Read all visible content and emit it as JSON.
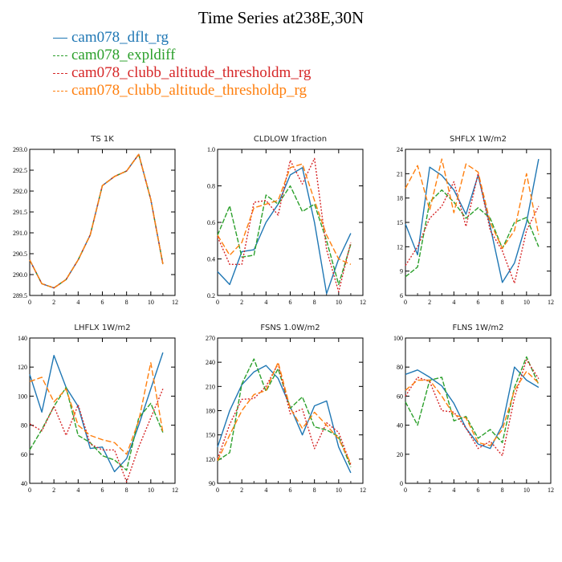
{
  "title": "Time Series at238E,30N",
  "legend": [
    {
      "name": "cam078_dflt_rg",
      "color": "#1f77b4",
      "dash": ""
    },
    {
      "name": "cam078_expldiff",
      "color": "#2ca02c",
      "dash": "6,2"
    },
    {
      "name": "cam078_clubb_altitude_thresholdm_rg",
      "color": "#d62728",
      "dash": "2,2"
    },
    {
      "name": "cam078_clubb_altitude_thresholdp_rg",
      "color": "#ff7f0e",
      "dash": "7,3"
    }
  ],
  "chart_data": [
    {
      "type": "line",
      "title": "TS   1K",
      "xlim": [
        0,
        12
      ],
      "xticks": [
        "0",
        "2",
        "4",
        "6",
        "8",
        "10",
        "12"
      ],
      "ylim": [
        289.5,
        293.0
      ],
      "yticks": [
        "289.5",
        "290.0",
        "290.5",
        "291.0",
        "291.5",
        "292.0",
        "292.5",
        "293.0"
      ],
      "x": [
        0,
        1,
        2,
        3,
        4,
        5,
        6,
        7,
        8,
        9,
        10,
        11
      ],
      "series": [
        {
          "name": "cam078_dflt_rg",
          "values": [
            290.35,
            289.78,
            289.68,
            289.88,
            290.35,
            290.95,
            292.13,
            292.35,
            292.48,
            292.88,
            291.8,
            290.25
          ]
        },
        {
          "name": "cam078_expldiff",
          "values": [
            290.35,
            289.78,
            289.68,
            289.88,
            290.35,
            290.95,
            292.13,
            292.35,
            292.48,
            292.88,
            291.8,
            290.25
          ]
        },
        {
          "name": "cam078_clubb_altitude_thresholdm_rg",
          "values": [
            290.35,
            289.78,
            289.68,
            289.88,
            290.35,
            290.95,
            292.13,
            292.35,
            292.48,
            292.88,
            291.8,
            290.25
          ]
        },
        {
          "name": "cam078_clubb_altitude_thresholdp_rg",
          "values": [
            290.35,
            289.78,
            289.68,
            289.88,
            290.35,
            290.95,
            292.13,
            292.35,
            292.48,
            292.88,
            291.8,
            290.25
          ]
        }
      ]
    },
    {
      "type": "line",
      "title": "CLDLOW   1fraction",
      "xlim": [
        0,
        12
      ],
      "xticks": [
        "0",
        "2",
        "4",
        "6",
        "8",
        "10",
        "12"
      ],
      "ylim": [
        0.2,
        1.0
      ],
      "yticks": [
        "0.2",
        "0.4",
        "0.6",
        "0.8",
        "1.0"
      ],
      "x": [
        0,
        1,
        2,
        3,
        4,
        5,
        6,
        7,
        8,
        9,
        10,
        11
      ],
      "series": [
        {
          "name": "cam078_dflt_rg",
          "values": [
            0.33,
            0.26,
            0.44,
            0.45,
            0.6,
            0.7,
            0.86,
            0.9,
            0.6,
            0.21,
            0.4,
            0.54
          ]
        },
        {
          "name": "cam078_expldiff",
          "values": [
            0.53,
            0.69,
            0.41,
            0.42,
            0.75,
            0.7,
            0.8,
            0.66,
            0.7,
            0.5,
            0.26,
            0.48
          ]
        },
        {
          "name": "cam078_clubb_altitude_thresholdm_rg",
          "values": [
            0.52,
            0.37,
            0.37,
            0.71,
            0.72,
            0.64,
            0.94,
            0.81,
            0.95,
            0.45,
            0.22,
            0.49
          ]
        },
        {
          "name": "cam078_clubb_altitude_thresholdp_rg",
          "values": [
            0.53,
            0.42,
            0.49,
            0.68,
            0.7,
            0.72,
            0.9,
            0.92,
            0.72,
            0.53,
            0.4,
            0.37
          ]
        }
      ]
    },
    {
      "type": "line",
      "title": "SHFLX   1W/m2",
      "xlim": [
        0,
        12
      ],
      "xticks": [
        "0",
        "2",
        "4",
        "6",
        "8",
        "10",
        "12"
      ],
      "ylim": [
        6,
        24
      ],
      "yticks": [
        "6",
        "9",
        "12",
        "15",
        "18",
        "21",
        "24"
      ],
      "x": [
        0,
        1,
        2,
        3,
        4,
        5,
        6,
        7,
        8,
        9,
        10,
        11
      ],
      "series": [
        {
          "name": "cam078_dflt_rg",
          "values": [
            14.8,
            11.0,
            21.8,
            20.8,
            19.0,
            16.0,
            20.8,
            14.5,
            7.6,
            10.0,
            15.0,
            22.8
          ]
        },
        {
          "name": "cam078_expldiff",
          "values": [
            8.3,
            9.5,
            17.5,
            19.0,
            17.5,
            15.5,
            16.8,
            15.5,
            11.8,
            15.0,
            15.6,
            12.0
          ]
        },
        {
          "name": "cam078_clubb_altitude_thresholdm_rg",
          "values": [
            9.7,
            12.0,
            15.5,
            17.0,
            20.0,
            14.5,
            21.0,
            14.0,
            11.5,
            7.5,
            14.0,
            17.0
          ]
        },
        {
          "name": "cam078_clubb_altitude_thresholdp_rg",
          "values": [
            19.2,
            22.0,
            16.5,
            22.8,
            16.2,
            22.2,
            21.2,
            15.0,
            11.8,
            14.0,
            21.0,
            13.5
          ]
        }
      ]
    },
    {
      "type": "line",
      "title": "LHFLX   1W/m2",
      "xlim": [
        0,
        12
      ],
      "xticks": [
        "0",
        "2",
        "4",
        "6",
        "8",
        "10",
        "12"
      ],
      "ylim": [
        40,
        140
      ],
      "yticks": [
        "40",
        "60",
        "80",
        "100",
        "120",
        "140"
      ],
      "x": [
        0,
        1,
        2,
        3,
        4,
        5,
        6,
        7,
        8,
        9,
        10,
        11
      ],
      "series": [
        {
          "name": "cam078_dflt_rg",
          "values": [
            115,
            89,
            128,
            106,
            93,
            64,
            65,
            48,
            57,
            80,
            105,
            130
          ]
        },
        {
          "name": "cam078_expldiff",
          "values": [
            63,
            77,
            93,
            106,
            73,
            68,
            59,
            56,
            49,
            85,
            95,
            75
          ]
        },
        {
          "name": "cam078_clubb_altitude_thresholdm_rg",
          "values": [
            81,
            76,
            93,
            73,
            94,
            67,
            63,
            63,
            41,
            65,
            85,
            105
          ]
        },
        {
          "name": "cam078_clubb_altitude_thresholdp_rg",
          "values": [
            110,
            113,
            96,
            105,
            80,
            73,
            70,
            68,
            60,
            83,
            123,
            75
          ]
        }
      ]
    },
    {
      "type": "line",
      "title": "FSNS   1.0W/m2",
      "xlim": [
        0,
        12
      ],
      "xticks": [
        "0",
        "2",
        "4",
        "6",
        "8",
        "10",
        "12"
      ],
      "ylim": [
        90,
        270
      ],
      "yticks": [
        "90",
        "120",
        "150",
        "180",
        "210",
        "240",
        "270"
      ],
      "x": [
        0,
        1,
        2,
        3,
        4,
        5,
        6,
        7,
        8,
        9,
        10,
        11
      ],
      "series": [
        {
          "name": "cam078_dflt_rg",
          "values": [
            135,
            180,
            212,
            228,
            236,
            220,
            185,
            150,
            186,
            192,
            135,
            103
          ]
        },
        {
          "name": "cam078_expldiff",
          "values": [
            118,
            128,
            213,
            244,
            204,
            232,
            183,
            197,
            160,
            156,
            148,
            110
          ]
        },
        {
          "name": "cam078_clubb_altitude_thresholdm_rg",
          "values": [
            120,
            163,
            194,
            195,
            210,
            238,
            176,
            182,
            133,
            165,
            153,
            113
          ]
        },
        {
          "name": "cam078_clubb_altitude_thresholdp_rg",
          "values": [
            118,
            150,
            180,
            200,
            205,
            240,
            183,
            158,
            178,
            162,
            145,
            115
          ]
        }
      ]
    },
    {
      "type": "line",
      "title": "FLNS   1W/m2",
      "xlim": [
        0,
        12
      ],
      "xticks": [
        "0",
        "2",
        "4",
        "6",
        "8",
        "10",
        "12"
      ],
      "ylim": [
        0,
        100
      ],
      "yticks": [
        "0",
        "20",
        "40",
        "60",
        "80",
        "100"
      ],
      "x": [
        0,
        1,
        2,
        3,
        4,
        5,
        6,
        7,
        8,
        9,
        10,
        11
      ],
      "series": [
        {
          "name": "cam078_dflt_rg",
          "values": [
            75,
            78,
            73,
            67,
            55,
            38,
            27,
            24,
            40,
            80,
            71,
            66
          ]
        },
        {
          "name": "cam078_expldiff",
          "values": [
            56,
            40,
            71,
            73,
            43,
            46,
            31,
            37,
            28,
            66,
            87,
            68
          ]
        },
        {
          "name": "cam078_clubb_altitude_thresholdm_rg",
          "values": [
            60,
            73,
            70,
            50,
            49,
            38,
            24,
            29,
            19,
            59,
            85,
            72
          ]
        },
        {
          "name": "cam078_clubb_altitude_thresholdp_rg",
          "values": [
            64,
            71,
            71,
            60,
            47,
            45,
            28,
            26,
            37,
            64,
            77,
            69
          ]
        }
      ]
    }
  ]
}
